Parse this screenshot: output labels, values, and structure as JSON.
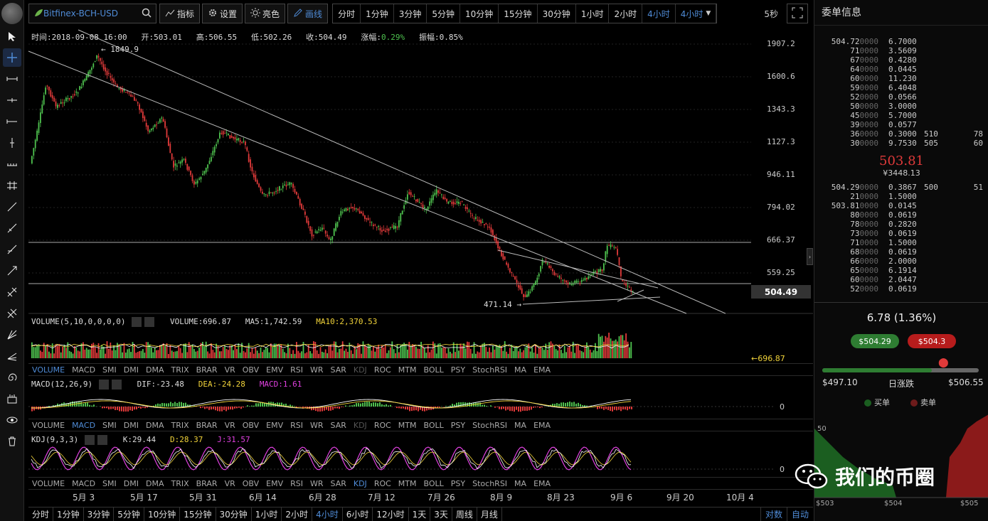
{
  "topbar": {
    "symbol": "Bitfinex-BCH-USD",
    "indicators_label": "指标",
    "settings_label": "设置",
    "light_label": "亮色",
    "draw_label": "画线",
    "periods": [
      "分时",
      "1分钟",
      "3分钟",
      "5分钟",
      "10分钟",
      "15分钟",
      "30分钟",
      "1小时",
      "2小时",
      "4小时"
    ],
    "period_dropdown": "4小时",
    "speed": "5秒"
  },
  "info": {
    "time": "时间:2018-09-08 16:00",
    "open": "开:503.01",
    "high": "高:506.55",
    "low": "低:502.26",
    "close": "收:504.49",
    "change_label": "涨幅:",
    "change_value": "0.29%",
    "amplitude": "振幅:0.85%"
  },
  "price_axis": [
    "1907.2",
    "1600.6",
    "1343.3",
    "1127.3",
    "946.11",
    "794.02",
    "666.37",
    "559.25",
    "504.49"
  ],
  "annotations": {
    "high": "← 1849.9",
    "low": "471.14 →"
  },
  "volume": {
    "title": "VOLUME(5,10,0,0,0,0)",
    "value": "VOLUME:696.87",
    "ma5": "MA5:1,742.59",
    "ma10": "MA10:2,370.53",
    "axis": "←696.87"
  },
  "macd": {
    "title": "MACD(12,26,9)",
    "dif": "DIF:-23.48",
    "dea": "DEA:-24.28",
    "macd": "MACD:1.61",
    "zero": "0"
  },
  "kdj": {
    "title": "KDJ(9,3,3)",
    "k": "K:29.44",
    "d": "D:28.37",
    "j": "J:31.57",
    "zero": "0"
  },
  "indicator_tabs": [
    "VOLUME",
    "MACD",
    "SMI",
    "DMI",
    "DMA",
    "TRIX",
    "BRAR",
    "VR",
    "OBV",
    "EMV",
    "RSI",
    "WR",
    "SAR",
    "KDJ",
    "ROC",
    "MTM",
    "BOLL",
    "PSY",
    "StochRSI",
    "MA",
    "EMA"
  ],
  "dates": [
    "5月 3",
    "5月 17",
    "5月 31",
    "6月 14",
    "6月 28",
    "7月 12",
    "7月 26",
    "8月 9",
    "8月 23",
    "9月 6",
    "9月 20",
    "10月 4"
  ],
  "bottom_periods": [
    "分时",
    "1分钟",
    "3分钟",
    "5分钟",
    "10分钟",
    "15分钟",
    "30分钟",
    "1小时",
    "2小时",
    "4小时",
    "6小时",
    "12小时",
    "1天",
    "3天",
    "周线",
    "月线"
  ],
  "bottom_right": [
    "对数",
    "自动"
  ],
  "orderbook": {
    "title": "委单信息",
    "asks": [
      [
        "504.72",
        "0000",
        "6.7000",
        "",
        ""
      ],
      [
        "71",
        "0000",
        "3.5609",
        "",
        ""
      ],
      [
        "67",
        "0000",
        "0.4280",
        "",
        ""
      ],
      [
        "64",
        "0000",
        "0.0445",
        "",
        ""
      ],
      [
        "60",
        "0000",
        "11.230",
        "",
        ""
      ],
      [
        "59",
        "0000",
        "6.4048",
        "",
        ""
      ],
      [
        "52",
        "0000",
        "0.0566",
        "",
        ""
      ],
      [
        "50",
        "0000",
        "3.0000",
        "",
        ""
      ],
      [
        "45",
        "0000",
        "5.7000",
        "",
        ""
      ],
      [
        "39",
        "0000",
        "0.0577",
        "",
        ""
      ],
      [
        "36",
        "0000",
        "0.3000",
        "510",
        "78"
      ],
      [
        "30",
        "0000",
        "9.7530",
        "505",
        "60"
      ]
    ],
    "mid_price": "503.81",
    "mid_cny": "¥3448.13",
    "bids": [
      [
        "504.29",
        "0000",
        "0.3867",
        "500",
        "51"
      ],
      [
        "21",
        "0000",
        "1.5000",
        "",
        ""
      ],
      [
        "503.81",
        "0000",
        "0.0145",
        "",
        ""
      ],
      [
        "80",
        "0000",
        "0.0619",
        "",
        ""
      ],
      [
        "78",
        "0000",
        "0.2820",
        "",
        ""
      ],
      [
        "73",
        "0000",
        "0.0619",
        "",
        ""
      ],
      [
        "71",
        "0000",
        "1.5000",
        "",
        ""
      ],
      [
        "68",
        "0000",
        "0.0619",
        "",
        ""
      ],
      [
        "66",
        "0000",
        "2.0000",
        "",
        ""
      ],
      [
        "65",
        "0000",
        "6.1914",
        "",
        ""
      ],
      [
        "60",
        "0000",
        "2.0447",
        "",
        ""
      ],
      [
        "52",
        "0000",
        "0.0619",
        "",
        ""
      ]
    ]
  },
  "summary": {
    "change": "6.78 (1.36%)",
    "buy_price": "$504.29",
    "sell_price": "$504.3",
    "range_low": "$497.10",
    "range_label": "日涨跌",
    "range_high": "$506.55",
    "range_position": 0.7,
    "buy_legend": "买单",
    "sell_legend": "卖单"
  },
  "depth": {
    "y_label": "50",
    "x_labels": [
      "$503",
      "$504",
      "$505"
    ]
  },
  "watermark": "我们的币圈",
  "colors": {
    "up": "#4ec14e",
    "down": "#e03a3a",
    "accent": "#4f8bd6",
    "dea": "#f2d43a",
    "macd": "#e040e0"
  }
}
